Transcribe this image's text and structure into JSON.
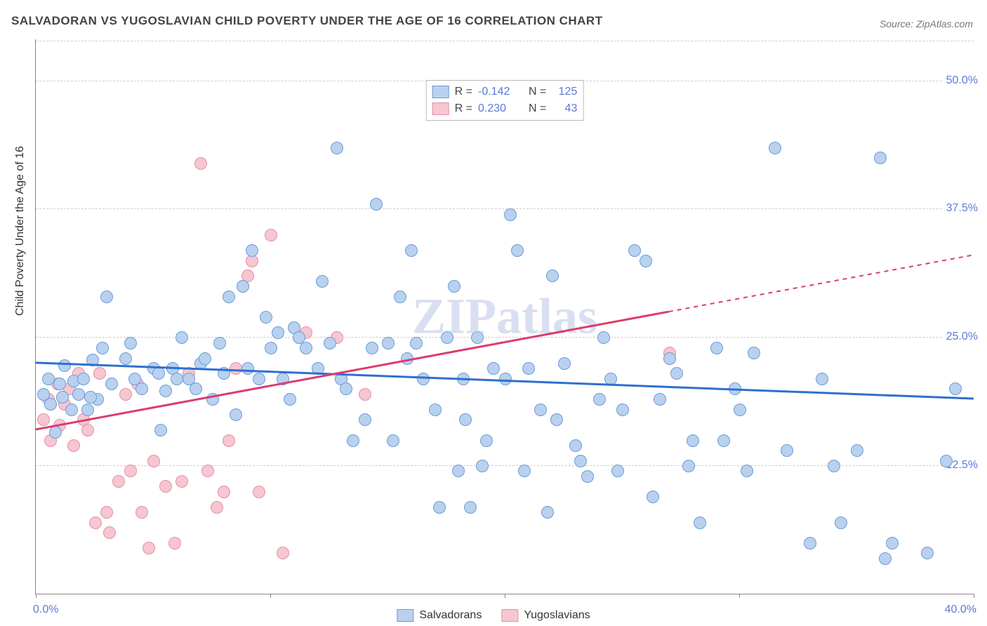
{
  "title": "SALVADORAN VS YUGOSLAVIAN CHILD POVERTY UNDER THE AGE OF 16 CORRELATION CHART",
  "source_prefix": "Source: ",
  "source_name": "ZipAtlas.com",
  "ylabel": "Child Poverty Under the Age of 16",
  "watermark": "ZIPatlas",
  "x_min": 0.0,
  "x_max": 40.0,
  "y_min": 0.0,
  "y_max": 54.0,
  "x_label_start": "0.0%",
  "x_label_end": "40.0%",
  "y_ticks": [
    {
      "value": 12.5,
      "label": "12.5%"
    },
    {
      "value": 25.0,
      "label": "25.0%"
    },
    {
      "value": 37.5,
      "label": "37.5%"
    },
    {
      "value": 50.0,
      "label": "50.0%"
    }
  ],
  "grid_dash_color": "#cccccc",
  "series": [
    {
      "name": "Salvadorans",
      "fill": "#b9d1ee",
      "stroke": "#6a9bd8",
      "reg_color": "#2f6fd0",
      "R": "-0.142",
      "N": "125",
      "reg_y_start": 22.5,
      "reg_y_end": 19.0,
      "solid_until_x": 40.0,
      "points": [
        [
          0.3,
          19.5
        ],
        [
          0.5,
          21.0
        ],
        [
          0.6,
          18.5
        ],
        [
          0.8,
          15.8
        ],
        [
          1.0,
          20.5
        ],
        [
          1.1,
          19.2
        ],
        [
          1.2,
          22.3
        ],
        [
          1.5,
          18.0
        ],
        [
          1.6,
          20.8
        ],
        [
          1.8,
          19.5
        ],
        [
          2.0,
          21.0
        ],
        [
          2.2,
          18.0
        ],
        [
          2.4,
          22.8
        ],
        [
          2.6,
          19.0
        ],
        [
          2.8,
          24.0
        ],
        [
          3.2,
          20.5
        ],
        [
          3.0,
          29.0
        ],
        [
          3.8,
          23.0
        ],
        [
          4.0,
          24.5
        ],
        [
          4.2,
          21.0
        ],
        [
          4.5,
          20.0
        ],
        [
          5.0,
          22.0
        ],
        [
          5.2,
          21.5
        ],
        [
          5.5,
          19.8
        ],
        [
          5.8,
          22.0
        ],
        [
          6.0,
          21.0
        ],
        [
          6.2,
          25.0
        ],
        [
          6.5,
          21.0
        ],
        [
          6.8,
          20.0
        ],
        [
          7.0,
          22.5
        ],
        [
          2.3,
          19.2
        ],
        [
          5.3,
          16.0
        ],
        [
          7.2,
          23.0
        ],
        [
          7.5,
          19.0
        ],
        [
          7.8,
          24.5
        ],
        [
          8.0,
          21.5
        ],
        [
          8.2,
          29.0
        ],
        [
          8.5,
          17.5
        ],
        [
          8.8,
          30.0
        ],
        [
          9.0,
          22.0
        ],
        [
          9.2,
          33.5
        ],
        [
          9.5,
          21.0
        ],
        [
          9.8,
          27.0
        ],
        [
          10.0,
          24.0
        ],
        [
          10.3,
          25.5
        ],
        [
          10.5,
          21.0
        ],
        [
          10.8,
          19.0
        ],
        [
          11.0,
          26.0
        ],
        [
          11.2,
          25.0
        ],
        [
          11.5,
          24.0
        ],
        [
          12.0,
          22.0
        ],
        [
          12.2,
          30.5
        ],
        [
          12.5,
          24.5
        ],
        [
          12.8,
          43.5
        ],
        [
          13.0,
          21.0
        ],
        [
          13.2,
          20.0
        ],
        [
          13.5,
          15.0
        ],
        [
          14.0,
          17.0
        ],
        [
          14.3,
          24.0
        ],
        [
          14.5,
          38.0
        ],
        [
          15.0,
          24.5
        ],
        [
          15.2,
          15.0
        ],
        [
          15.5,
          29.0
        ],
        [
          15.8,
          23.0
        ],
        [
          16.0,
          33.5
        ],
        [
          16.2,
          24.5
        ],
        [
          16.5,
          21.0
        ],
        [
          17.0,
          18.0
        ],
        [
          17.2,
          8.5
        ],
        [
          17.5,
          25.0
        ],
        [
          17.8,
          30.0
        ],
        [
          18.0,
          12.0
        ],
        [
          18.2,
          21.0
        ],
        [
          18.5,
          8.5
        ],
        [
          18.8,
          25.0
        ],
        [
          19.0,
          12.5
        ],
        [
          18.3,
          17.0
        ],
        [
          19.5,
          22.0
        ],
        [
          19.2,
          15.0
        ],
        [
          20.0,
          21.0
        ],
        [
          20.2,
          37.0
        ],
        [
          20.5,
          33.5
        ],
        [
          20.8,
          12.0
        ],
        [
          21.0,
          22.0
        ],
        [
          21.5,
          18.0
        ],
        [
          21.8,
          8.0
        ],
        [
          22.0,
          31.0
        ],
        [
          22.2,
          17.0
        ],
        [
          22.5,
          22.5
        ],
        [
          23.0,
          14.5
        ],
        [
          23.2,
          13.0
        ],
        [
          23.5,
          11.5
        ],
        [
          24.0,
          19.0
        ],
        [
          24.2,
          25.0
        ],
        [
          24.5,
          21.0
        ],
        [
          24.8,
          12.0
        ],
        [
          25.0,
          18.0
        ],
        [
          25.5,
          33.5
        ],
        [
          26.0,
          32.5
        ],
        [
          26.3,
          9.5
        ],
        [
          26.6,
          19.0
        ],
        [
          27.0,
          23.0
        ],
        [
          27.3,
          21.5
        ],
        [
          27.8,
          12.5
        ],
        [
          28.0,
          15.0
        ],
        [
          28.3,
          7.0
        ],
        [
          29.0,
          24.0
        ],
        [
          29.3,
          15.0
        ],
        [
          29.8,
          20.0
        ],
        [
          30.0,
          18.0
        ],
        [
          30.3,
          12.0
        ],
        [
          30.6,
          23.5
        ],
        [
          31.5,
          43.5
        ],
        [
          32.0,
          14.0
        ],
        [
          33.0,
          5.0
        ],
        [
          33.5,
          21.0
        ],
        [
          34.0,
          12.5
        ],
        [
          34.3,
          7.0
        ],
        [
          35.0,
          14.0
        ],
        [
          36.0,
          42.5
        ],
        [
          36.2,
          3.5
        ],
        [
          36.5,
          5.0
        ],
        [
          38.0,
          4.0
        ],
        [
          39.2,
          20.0
        ],
        [
          38.8,
          13.0
        ]
      ]
    },
    {
      "name": "Yugoslavians",
      "fill": "#f6c6d1",
      "stroke": "#e48fa5",
      "reg_color": "#dc3c6e",
      "R": "0.230",
      "N": "43",
      "reg_y_start": 16.0,
      "reg_y_end": 33.0,
      "solid_until_x": 27.0,
      "points": [
        [
          0.3,
          17.0
        ],
        [
          0.5,
          19.0
        ],
        [
          0.6,
          15.0
        ],
        [
          0.9,
          20.5
        ],
        [
          1.0,
          16.5
        ],
        [
          1.2,
          18.5
        ],
        [
          1.4,
          20.0
        ],
        [
          1.6,
          14.5
        ],
        [
          1.8,
          21.5
        ],
        [
          2.0,
          17.0
        ],
        [
          2.2,
          16.0
        ],
        [
          2.5,
          7.0
        ],
        [
          2.7,
          21.5
        ],
        [
          3.0,
          8.0
        ],
        [
          3.1,
          6.0
        ],
        [
          3.5,
          11.0
        ],
        [
          3.8,
          19.5
        ],
        [
          4.0,
          12.0
        ],
        [
          4.3,
          20.5
        ],
        [
          4.5,
          8.0
        ],
        [
          4.8,
          4.5
        ],
        [
          5.0,
          13.0
        ],
        [
          5.5,
          10.5
        ],
        [
          5.9,
          5.0
        ],
        [
          6.2,
          11.0
        ],
        [
          6.5,
          21.5
        ],
        [
          7.0,
          42.0
        ],
        [
          7.3,
          12.0
        ],
        [
          7.7,
          8.5
        ],
        [
          8.0,
          10.0
        ],
        [
          8.2,
          15.0
        ],
        [
          8.5,
          22.0
        ],
        [
          8.8,
          30.0
        ],
        [
          9.0,
          31.0
        ],
        [
          9.2,
          32.5
        ],
        [
          9.5,
          10.0
        ],
        [
          10.0,
          35.0
        ],
        [
          10.5,
          4.0
        ],
        [
          11.5,
          25.5
        ],
        [
          12.8,
          25.0
        ],
        [
          13.0,
          21.0
        ],
        [
          14.0,
          19.5
        ],
        [
          27.0,
          23.5
        ]
      ]
    }
  ],
  "corr_legend": {
    "r_label": "R =",
    "n_label": "N ="
  }
}
